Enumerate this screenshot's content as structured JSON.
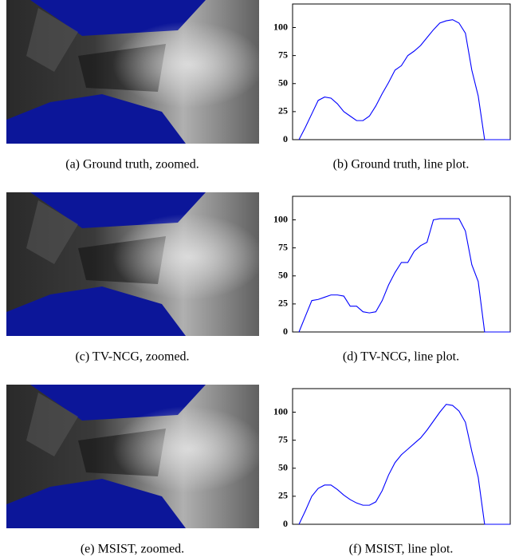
{
  "captions": [
    "(a) Ground truth, zoomed.",
    "(b) Ground truth, line plot.",
    "(c) TV-NCG, zoomed.",
    "(d) TV-NCG, line plot.",
    "(e) MSIST, zoomed.",
    "(f) MSIST, line plot."
  ],
  "chart_data": [
    {
      "type": "line",
      "color": "#0000ff",
      "xlim": [
        0,
        34
      ],
      "ylim": [
        0,
        121
      ],
      "yticks": [
        0,
        25,
        50,
        75,
        100
      ],
      "x": [
        1,
        2,
        3,
        4,
        5,
        6,
        7,
        8,
        9,
        10,
        11,
        12,
        13,
        14,
        15,
        16,
        17,
        18,
        19,
        20,
        21,
        22,
        23,
        24,
        25,
        26,
        27,
        28,
        29,
        30,
        31,
        32,
        33,
        34
      ],
      "values": [
        0,
        11,
        23,
        35,
        38,
        37,
        32,
        25,
        21,
        17,
        17,
        21,
        30,
        41,
        51,
        62,
        66,
        75,
        79,
        84,
        91,
        98,
        104,
        106,
        107,
        104,
        95,
        62,
        39,
        0,
        0,
        0,
        0,
        0
      ]
    },
    {
      "type": "line",
      "color": "#0000ff",
      "xlim": [
        0,
        34
      ],
      "ylim": [
        0,
        121
      ],
      "yticks": [
        0,
        25,
        50,
        75,
        100
      ],
      "x": [
        1,
        2,
        3,
        4,
        5,
        6,
        7,
        8,
        9,
        10,
        11,
        12,
        13,
        14,
        15,
        16,
        17,
        18,
        19,
        20,
        21,
        22,
        23,
        24,
        25,
        26,
        27,
        28,
        29,
        30,
        31,
        32,
        33,
        34
      ],
      "values": [
        0,
        14,
        28,
        29,
        31,
        33,
        33,
        32,
        23,
        23,
        18,
        17,
        18,
        28,
        42,
        53,
        62,
        62,
        72,
        77,
        80,
        100,
        101,
        101,
        101,
        101,
        90,
        60,
        45,
        0,
        0,
        0,
        0,
        0
      ]
    },
    {
      "type": "line",
      "color": "#0000ff",
      "xlim": [
        0,
        34
      ],
      "ylim": [
        0,
        121
      ],
      "yticks": [
        0,
        25,
        50,
        75,
        100
      ],
      "x": [
        1,
        2,
        3,
        4,
        5,
        6,
        7,
        8,
        9,
        10,
        11,
        12,
        13,
        14,
        15,
        16,
        17,
        18,
        19,
        20,
        21,
        22,
        23,
        24,
        25,
        26,
        27,
        28,
        29,
        30,
        31,
        32,
        33,
        34
      ],
      "values": [
        0,
        12,
        25,
        32,
        35,
        35,
        31,
        26,
        22,
        19,
        17,
        17,
        20,
        30,
        44,
        55,
        62,
        67,
        72,
        77,
        84,
        92,
        100,
        107,
        106,
        101,
        91,
        65,
        42,
        0,
        0,
        0,
        0,
        0
      ]
    }
  ]
}
